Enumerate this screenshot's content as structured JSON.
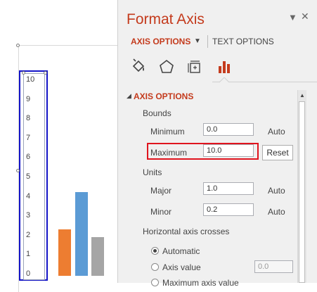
{
  "chart": {
    "axis_ticks": [
      "10",
      "9",
      "8",
      "7",
      "6",
      "5",
      "4",
      "3",
      "2",
      "1",
      "0"
    ]
  },
  "chart_data": {
    "type": "bar",
    "categories": [
      "",
      "",
      ""
    ],
    "values": [
      2.4,
      4.3,
      2.0
    ],
    "colors": [
      "#ed7d31",
      "#5b9bd5",
      "#a5a5a5"
    ],
    "ylim": [
      0,
      10
    ]
  },
  "pane": {
    "title": "Format Axis",
    "dropdown_glyph": "▼",
    "close_glyph": "✕",
    "tabs": {
      "axis_options": "AXIS OPTIONS",
      "text_options": "TEXT OPTIONS"
    },
    "icons": [
      "fill-line-icon",
      "effects-icon",
      "size-properties-icon",
      "axis-options-icon"
    ],
    "section_title": "AXIS OPTIONS",
    "bounds_label": "Bounds",
    "minimum_label": "Minimum",
    "minimum_value": "0.0",
    "minimum_auto": "Auto",
    "maximum_label": "Maximum",
    "maximum_value": "10.0",
    "reset_label": "Reset",
    "units_label": "Units",
    "major_label": "Major",
    "major_value": "1.0",
    "major_auto": "Auto",
    "minor_label": "Minor",
    "minor_value": "0.2",
    "minor_auto": "Auto",
    "crosses_label": "Horizontal axis crosses",
    "automatic_label": "Automatic",
    "axis_value_label": "Axis value",
    "axis_value_value": "0.0",
    "max_axis_label": "Maximum axis value",
    "highlight_color": "#e0141e",
    "accent_color": "#c43b1d"
  }
}
